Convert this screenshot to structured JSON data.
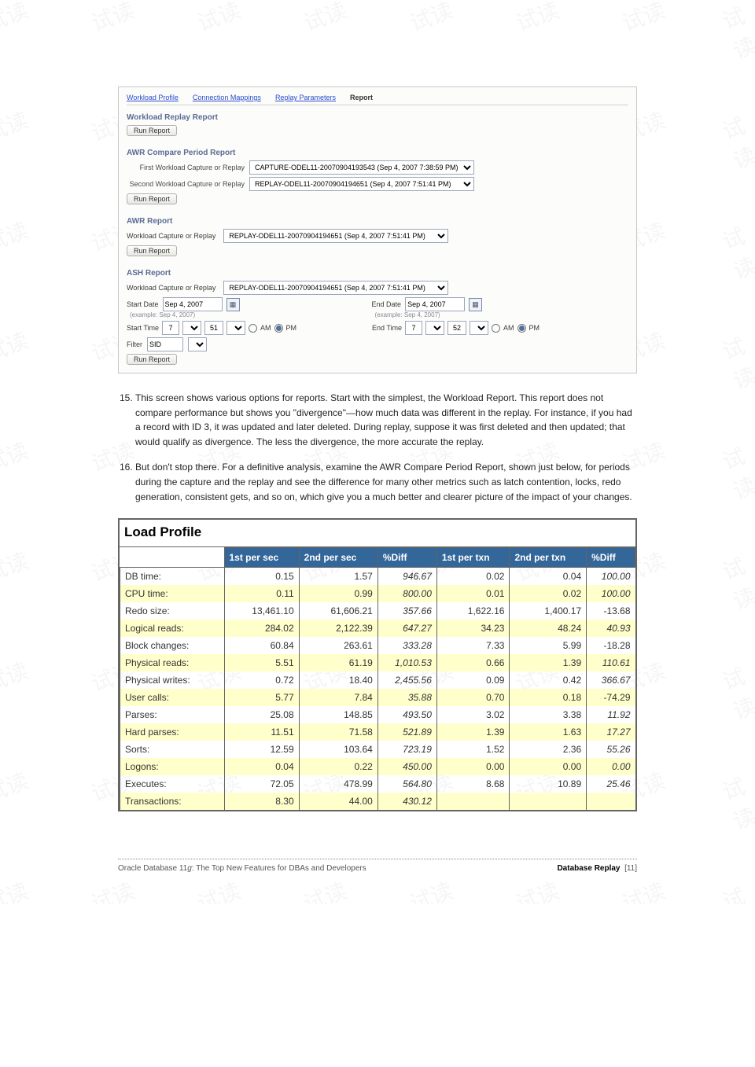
{
  "watermark": "试读",
  "tabs": {
    "t1": "Workload Profile",
    "t2": "Connection Mappings",
    "t3": "Replay Parameters",
    "t4": "Report"
  },
  "section1": {
    "title": "Workload Replay Report",
    "btn": "Run Report"
  },
  "section2": {
    "title": "AWR Compare Period Report",
    "lbl1": "First Workload Capture or Replay",
    "val1": "CAPTURE-ODEL11-20070904193543 (Sep 4, 2007 7:38:59 PM)",
    "lbl2": "Second Workload Capture or Replay",
    "val2": "REPLAY-ODEL11-20070904194651 (Sep 4, 2007 7:51:41 PM)",
    "btn": "Run Report"
  },
  "section3": {
    "title": "AWR Report",
    "lbl": "Workload Capture or Replay",
    "val": "REPLAY-ODEL11-20070904194651 (Sep 4, 2007 7:51:41 PM)",
    "btn": "Run Report"
  },
  "section4": {
    "title": "ASH Report",
    "lbl": "Workload Capture or Replay",
    "val": "REPLAY-ODEL11-20070904194651 (Sep 4, 2007 7:51:41 PM)",
    "startDateLbl": "Start Date",
    "startDate": "Sep 4, 2007",
    "startHint": "(example: Sep 4, 2007)",
    "endDateLbl": "End Date",
    "endDate": "Sep 4, 2007",
    "endHint": "(example: Sep 4, 2007)",
    "startTimeLbl": "Start Time",
    "startH": "7",
    "startM": "51",
    "endTimeLbl": "End Time",
    "endH": "7",
    "endM": "52",
    "am": "AM",
    "pm": "PM",
    "filterLbl": "Filter",
    "filterVal": "SID",
    "btn": "Run Report"
  },
  "steps": {
    "n15": "15",
    "t15": "This screen shows various options for reports. Start with the simplest, the Workload Report. This report does not compare performance but shows you \"divergence\"—how much data was different in the replay. For instance, if you had a record with ID 3, it was updated and later deleted. During replay, suppose it was first deleted and then updated; that would qualify as divergence. The less the divergence, the more accurate the replay.",
    "n16": "16",
    "t16": "But don't stop there. For a definitive analysis, examine the AWR Compare Period Report, shown just below, for periods during the capture and the replay and see the difference for many other metrics such as latch contention, locks, redo generation, consistent gets, and so on, which give you a much better and clearer picture of the impact of your changes."
  },
  "loadProfile": {
    "title": "Load Profile",
    "headers": [
      "",
      "1st per sec",
      "2nd per sec",
      "%Diff",
      "1st per txn",
      "2nd per txn",
      "%Diff"
    ],
    "rows": [
      {
        "m": "DB time:",
        "a": "0.15",
        "b": "1.57",
        "c": "946.67",
        "d": "0.02",
        "e": "0.04",
        "f": "100.00",
        "c_it": true,
        "f_it": true
      },
      {
        "m": "CPU time:",
        "a": "0.11",
        "b": "0.99",
        "c": "800.00",
        "d": "0.01",
        "e": "0.02",
        "f": "100.00",
        "c_it": true,
        "f_it": true
      },
      {
        "m": "Redo size:",
        "a": "13,461.10",
        "b": "61,606.21",
        "c": "357.66",
        "d": "1,622.16",
        "e": "1,400.17",
        "f": "-13.68",
        "c_it": true
      },
      {
        "m": "Logical reads:",
        "a": "284.02",
        "b": "2,122.39",
        "c": "647.27",
        "d": "34.23",
        "e": "48.24",
        "f": "40.93",
        "c_it": true,
        "f_it": true
      },
      {
        "m": "Block changes:",
        "a": "60.84",
        "b": "263.61",
        "c": "333.28",
        "d": "7.33",
        "e": "5.99",
        "f": "-18.28",
        "c_it": true
      },
      {
        "m": "Physical reads:",
        "a": "5.51",
        "b": "61.19",
        "c": "1,010.53",
        "d": "0.66",
        "e": "1.39",
        "f": "110.61",
        "c_it": true,
        "f_it": true
      },
      {
        "m": "Physical writes:",
        "a": "0.72",
        "b": "18.40",
        "c": "2,455.56",
        "d": "0.09",
        "e": "0.42",
        "f": "366.67",
        "c_it": true,
        "f_it": true
      },
      {
        "m": "User calls:",
        "a": "5.77",
        "b": "7.84",
        "c": "35.88",
        "d": "0.70",
        "e": "0.18",
        "f": "-74.29",
        "c_it": true
      },
      {
        "m": "Parses:",
        "a": "25.08",
        "b": "148.85",
        "c": "493.50",
        "d": "3.02",
        "e": "3.38",
        "f": "11.92",
        "c_it": true,
        "f_it": true
      },
      {
        "m": "Hard parses:",
        "a": "11.51",
        "b": "71.58",
        "c": "521.89",
        "d": "1.39",
        "e": "1.63",
        "f": "17.27",
        "c_it": true,
        "f_it": true
      },
      {
        "m": "Sorts:",
        "a": "12.59",
        "b": "103.64",
        "c": "723.19",
        "d": "1.52",
        "e": "2.36",
        "f": "55.26",
        "c_it": true,
        "f_it": true
      },
      {
        "m": "Logons:",
        "a": "0.04",
        "b": "0.22",
        "c": "450.00",
        "d": "0.00",
        "e": "0.00",
        "f": "0.00",
        "c_it": true,
        "f_it": true
      },
      {
        "m": "Executes:",
        "a": "72.05",
        "b": "478.99",
        "c": "564.80",
        "d": "8.68",
        "e": "10.89",
        "f": "25.46",
        "c_it": true,
        "f_it": true
      },
      {
        "m": "Transactions:",
        "a": "8.30",
        "b": "44.00",
        "c": "430.12",
        "d": "",
        "e": "",
        "f": "",
        "c_it": true
      }
    ]
  },
  "footer": {
    "left_a": "Oracle Database 11",
    "left_b": "g",
    "left_c": ": The Top New Features for DBAs and Developers",
    "right_a": "Database Replay",
    "right_b": "[11]"
  }
}
